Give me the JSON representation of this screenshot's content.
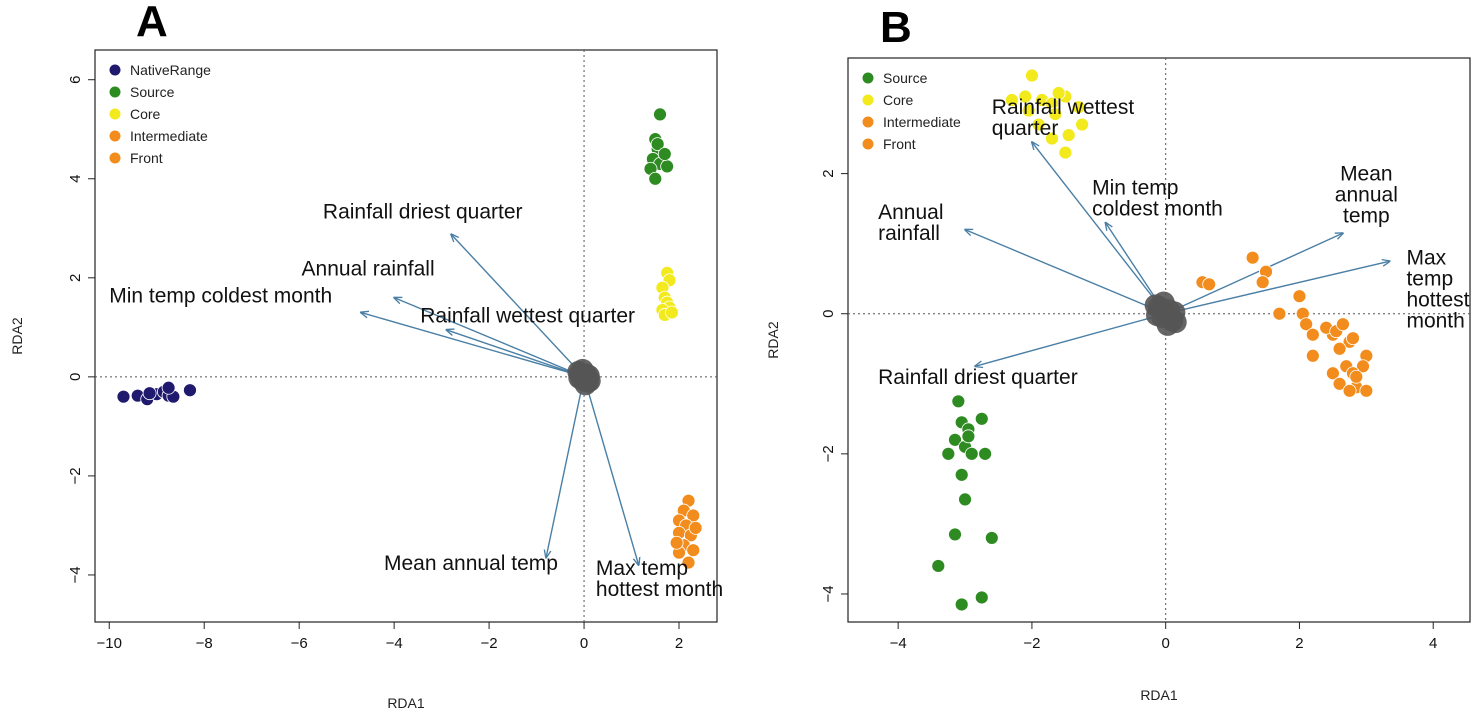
{
  "figure": {
    "panel_a_letter": "A",
    "panel_b_letter": "B"
  },
  "colors": {
    "NativeRange": "#1f1a6e",
    "Source": "#2e8b22",
    "Core": "#f2ea1c",
    "Intermediate": "#f28c1c",
    "Front": "#f28c1c",
    "center": "#555555",
    "arrow": "#4a7fa5"
  },
  "chart_data": [
    {
      "type": "scatter",
      "panel": "A",
      "title": "",
      "xlabel": "RDA1",
      "ylabel": "RDA2",
      "xlim": [
        -10.3,
        2.8
      ],
      "ylim": [
        -4.95,
        6.6
      ],
      "xticks": [
        -10,
        -8,
        -6,
        -4,
        -2,
        0,
        2
      ],
      "yticks": [
        -4,
        -2,
        0,
        2,
        4,
        6
      ],
      "legend": [
        "NativeRange",
        "Source",
        "Core",
        "Intermediate",
        "Front"
      ],
      "legend_position": "top-left",
      "series": [
        {
          "name": "NativeRange",
          "points": [
            [
              -9.7,
              -0.4
            ],
            [
              -9.4,
              -0.38
            ],
            [
              -9.2,
              -0.45
            ],
            [
              -9.0,
              -0.35
            ],
            [
              -8.85,
              -0.3
            ],
            [
              -8.75,
              -0.38
            ],
            [
              -8.65,
              -0.4
            ],
            [
              -8.75,
              -0.22
            ],
            [
              -8.3,
              -0.27
            ],
            [
              -9.15,
              -0.33
            ]
          ]
        },
        {
          "name": "Source",
          "points": [
            [
              1.6,
              5.3
            ],
            [
              1.5,
              4.8
            ],
            [
              1.55,
              4.6
            ],
            [
              1.45,
              4.4
            ],
            [
              1.6,
              4.3
            ],
            [
              1.75,
              4.25
            ],
            [
              1.4,
              4.2
            ],
            [
              1.5,
              4.0
            ],
            [
              1.55,
              4.7
            ],
            [
              1.7,
              4.5
            ]
          ]
        },
        {
          "name": "Core",
          "points": [
            [
              1.75,
              2.1
            ],
            [
              1.8,
              1.95
            ],
            [
              1.65,
              1.8
            ],
            [
              1.7,
              1.6
            ],
            [
              1.75,
              1.5
            ],
            [
              1.8,
              1.4
            ],
            [
              1.65,
              1.35
            ],
            [
              1.7,
              1.25
            ],
            [
              1.85,
              1.3
            ]
          ]
        },
        {
          "name": "Intermediate",
          "points": [
            [
              2.2,
              -2.5
            ],
            [
              2.1,
              -2.7
            ],
            [
              2.0,
              -2.9
            ],
            [
              2.3,
              -2.8
            ],
            [
              2.15,
              -3.0
            ],
            [
              2.0,
              -3.15
            ],
            [
              2.25,
              -3.2
            ],
            [
              2.1,
              -3.4
            ],
            [
              2.3,
              -3.5
            ],
            [
              2.0,
              -3.55
            ],
            [
              2.2,
              -3.75
            ],
            [
              1.95,
              -3.35
            ],
            [
              2.35,
              -3.05
            ]
          ]
        },
        {
          "name": "center",
          "points": [
            [
              -0.05,
              -0.05
            ],
            [
              0.05,
              0.05
            ],
            [
              0.08,
              -0.1
            ],
            [
              -0.08,
              0.08
            ],
            [
              0.0,
              0.0
            ],
            [
              0.1,
              0.02
            ],
            [
              -0.1,
              -0.02
            ],
            [
              0.03,
              -0.15
            ],
            [
              -0.03,
              0.14
            ],
            [
              0.12,
              -0.08
            ],
            [
              -0.12,
              0.1
            ]
          ]
        }
      ],
      "arrows": [
        {
          "label": "Rainfall driest quarter",
          "end": [
            -2.8,
            2.88
          ],
          "label_pos": [
            -5.5,
            3.2
          ],
          "label_anchor": "start"
        },
        {
          "label": "Annual rainfall",
          "end": [
            -4.0,
            1.6
          ],
          "label_pos": [
            -5.95,
            2.05
          ],
          "label_anchor": "start"
        },
        {
          "label": "Min temp coldest month",
          "end": [
            -4.7,
            1.3
          ],
          "label_pos": [
            -10.0,
            1.5
          ],
          "label_anchor": "start"
        },
        {
          "label": "Rainfall wettest quarter",
          "end": [
            -2.9,
            0.95
          ],
          "label_pos": [
            -3.45,
            1.1
          ],
          "label_anchor": "start"
        },
        {
          "label": "Mean annual temp",
          "end": [
            -0.8,
            -3.65
          ],
          "label_pos": [
            -0.55,
            -3.9
          ],
          "label_anchor": "end"
        },
        {
          "label": "Max temp hottest month",
          "end": [
            1.15,
            -3.8
          ],
          "label_pos": [
            0.25,
            -4.0
          ],
          "label_anchor": "start",
          "label_lines": [
            "Max temp",
            "hottest month"
          ]
        }
      ]
    },
    {
      "type": "scatter",
      "panel": "B",
      "title": "",
      "xlabel": "RDA1",
      "ylabel": "RDA2",
      "xlim": [
        -4.75,
        4.55
      ],
      "ylim": [
        -4.4,
        3.65
      ],
      "xticks": [
        -4,
        -2,
        0,
        2,
        4
      ],
      "yticks": [
        -4,
        -2,
        0,
        2
      ],
      "legend": [
        "Source",
        "Core",
        "Intermediate",
        "Front"
      ],
      "legend_position": "top-left",
      "series": [
        {
          "name": "Source",
          "points": [
            [
              -3.1,
              -1.25
            ],
            [
              -3.05,
              -1.55
            ],
            [
              -2.95,
              -1.65
            ],
            [
              -3.15,
              -1.8
            ],
            [
              -2.75,
              -1.5
            ],
            [
              -3.0,
              -1.9
            ],
            [
              -2.9,
              -2.0
            ],
            [
              -3.25,
              -2.0
            ],
            [
              -2.7,
              -2.0
            ],
            [
              -3.05,
              -2.3
            ],
            [
              -3.0,
              -2.65
            ],
            [
              -3.15,
              -3.15
            ],
            [
              -2.6,
              -3.2
            ],
            [
              -3.4,
              -3.6
            ],
            [
              -2.75,
              -4.05
            ],
            [
              -3.05,
              -4.15
            ],
            [
              -2.95,
              -1.75
            ]
          ]
        },
        {
          "name": "Core",
          "points": [
            [
              -2.0,
              3.4
            ],
            [
              -2.3,
              3.05
            ],
            [
              -2.1,
              3.1
            ],
            [
              -1.85,
              3.05
            ],
            [
              -1.7,
              3.0
            ],
            [
              -1.5,
              3.1
            ],
            [
              -1.3,
              2.95
            ],
            [
              -1.65,
              2.85
            ],
            [
              -1.9,
              2.7
            ],
            [
              -1.7,
              2.5
            ],
            [
              -1.45,
              2.55
            ],
            [
              -1.5,
              2.3
            ],
            [
              -1.25,
              2.7
            ],
            [
              -2.05,
              2.9
            ],
            [
              -1.6,
              3.15
            ]
          ]
        },
        {
          "name": "Intermediate",
          "points": [
            [
              0.55,
              0.45
            ],
            [
              0.65,
              0.42
            ],
            [
              1.3,
              0.8
            ],
            [
              1.5,
              0.6
            ],
            [
              1.45,
              0.45
            ],
            [
              1.7,
              0.0
            ],
            [
              2.0,
              0.25
            ],
            [
              2.05,
              0.0
            ],
            [
              2.1,
              -0.15
            ],
            [
              2.2,
              -0.3
            ],
            [
              2.5,
              -0.3
            ],
            [
              2.75,
              -0.4
            ],
            [
              2.6,
              -0.5
            ],
            [
              3.0,
              -0.6
            ],
            [
              2.2,
              -0.6
            ],
            [
              2.7,
              -0.75
            ],
            [
              2.95,
              -0.75
            ],
            [
              2.5,
              -0.85
            ],
            [
              2.8,
              -0.85
            ],
            [
              2.6,
              -1.0
            ],
            [
              2.85,
              -1.05
            ],
            [
              3.0,
              -1.1
            ],
            [
              2.75,
              -1.1
            ],
            [
              2.85,
              -0.9
            ],
            [
              2.4,
              -0.2
            ]
          ]
        },
        {
          "name": "Front",
          "points": [
            [
              2.55,
              -0.25
            ],
            [
              2.8,
              -0.35
            ],
            [
              2.65,
              -0.15
            ]
          ]
        },
        {
          "name": "center",
          "points": [
            [
              -0.05,
              -0.05
            ],
            [
              0.05,
              0.05
            ],
            [
              0.1,
              -0.1
            ],
            [
              -0.1,
              0.1
            ],
            [
              0.0,
              0.0
            ],
            [
              0.13,
              0.02
            ],
            [
              -0.13,
              -0.02
            ],
            [
              0.03,
              -0.16
            ],
            [
              -0.03,
              0.16
            ],
            [
              0.15,
              -0.12
            ],
            [
              -0.15,
              0.12
            ]
          ]
        }
      ],
      "arrows": [
        {
          "label": "Rainfall wettest quarter",
          "end": [
            -2.0,
            2.45
          ],
          "label_pos": [
            -2.6,
            2.85
          ],
          "label_anchor": "start",
          "label_lines": [
            "Rainfall wettest",
            "quarter"
          ]
        },
        {
          "label": "Min temp coldest month",
          "end": [
            -0.9,
            1.3
          ],
          "label_pos": [
            -1.1,
            1.7
          ],
          "label_anchor": "start",
          "label_lines": [
            "Min temp",
            "coldest month"
          ]
        },
        {
          "label": "Annual rainfall",
          "end": [
            -3.0,
            1.2
          ],
          "label_pos": [
            -4.3,
            1.35
          ],
          "label_anchor": "start",
          "label_lines": [
            "Annual",
            "rainfall"
          ]
        },
        {
          "label": "Mean annual temp",
          "end": [
            2.65,
            1.15
          ],
          "label_pos": [
            3.0,
            1.9
          ],
          "label_anchor": "middle",
          "label_lines": [
            "Mean",
            "annual",
            "temp"
          ]
        },
        {
          "label": "Max temp hottest month",
          "end": [
            3.35,
            0.75
          ],
          "label_pos": [
            3.6,
            0.7
          ],
          "label_anchor": "start",
          "label_lines": [
            "Max",
            "temp",
            "hottest",
            "month"
          ]
        },
        {
          "label": "Rainfall driest quarter",
          "end": [
            -2.85,
            -0.75
          ],
          "label_pos": [
            -4.3,
            -1.0
          ],
          "label_anchor": "start"
        }
      ]
    }
  ]
}
